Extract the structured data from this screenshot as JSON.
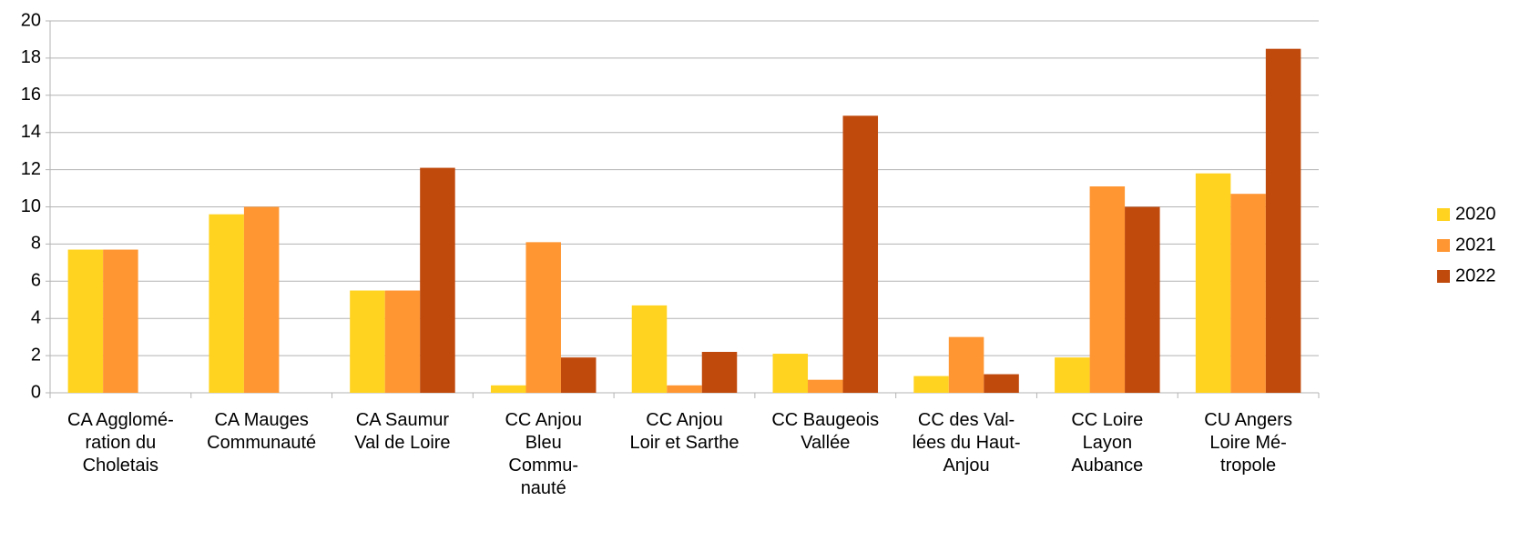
{
  "chart_data": {
    "type": "bar",
    "categories": [
      "CA Agglomé-\nration du\nCholetais",
      "CA Mauges\nCommunauté",
      "CA Saumur\nVal de Loire",
      "CC Anjou\nBleu\nCommu-\nnauté",
      "CC Anjou\nLoir et Sarthe",
      "CC Baugeois\nVallée",
      "CC des Val-\nlées du Haut-\nAnjou",
      "CC Loire\nLayon\nAubance",
      "CU Angers\nLoire Mé-\ntropole"
    ],
    "series": [
      {
        "name": "2020",
        "color": "#ffd320",
        "values": [
          7.7,
          9.6,
          5.5,
          0.4,
          4.7,
          2.1,
          0.9,
          1.9,
          11.8
        ]
      },
      {
        "name": "2021",
        "color": "#ff9632",
        "values": [
          7.7,
          10.0,
          5.5,
          8.1,
          0.4,
          0.7,
          3.0,
          11.1,
          10.7
        ]
      },
      {
        "name": "2022",
        "color": "#c0490c",
        "values": [
          null,
          null,
          12.1,
          1.9,
          2.2,
          14.9,
          1.0,
          10.0,
          18.5
        ]
      }
    ],
    "ylim": [
      0,
      20
    ],
    "yticks": [
      0,
      2,
      4,
      6,
      8,
      10,
      12,
      14,
      16,
      18,
      20
    ],
    "grid": true,
    "legend": "right"
  }
}
